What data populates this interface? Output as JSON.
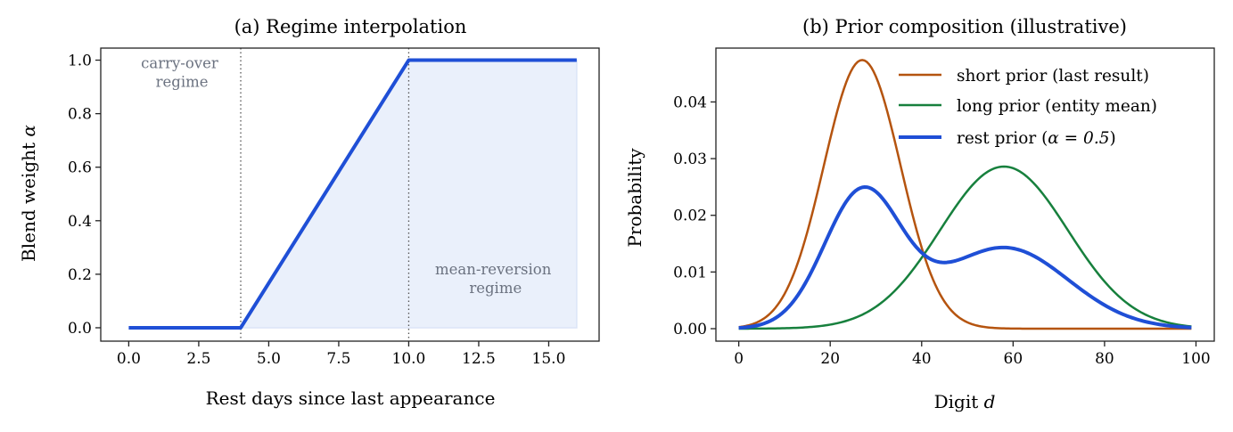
{
  "chart_data": [
    {
      "type": "line",
      "title": "(a) Regime interpolation",
      "xlabel": "Rest days since last appearance",
      "ylabel_text": "Blend weight ",
      "ylabel_symbol": "α",
      "xlim": [
        -1.0,
        16.8
      ],
      "ylim": [
        -0.05,
        1.045
      ],
      "xticks": [
        0,
        2.5,
        5,
        7.5,
        10,
        12.5,
        15
      ],
      "xtick_labels": [
        "0.0",
        "2.5",
        "5.0",
        "7.5",
        "10.0",
        "12.5",
        "15.0"
      ],
      "yticks": [
        0,
        0.2,
        0.4,
        0.6,
        0.8,
        1.0
      ],
      "ytick_labels": [
        "0.0",
        "0.2",
        "0.4",
        "0.6",
        "0.8",
        "1.0"
      ],
      "series": [
        {
          "x": [
            0,
            4,
            10,
            16
          ],
          "y": [
            0,
            0,
            1,
            1
          ],
          "color": "#1f4fd6"
        }
      ],
      "fill_under": {
        "x_from": 4,
        "x_to": 16,
        "color": "#eaf0fb"
      },
      "vlines": [
        4,
        10
      ],
      "annotations": [
        {
          "lines": [
            "carry-over",
            "regime"
          ],
          "x": 1.9,
          "y": 0.97
        },
        {
          "lines": [
            "mean-reversion",
            "regime"
          ],
          "x": 13.1,
          "y": 0.2
        }
      ],
      "grid": false
    },
    {
      "type": "line",
      "title": "(b) Prior composition (illustrative)",
      "xlabel_text": "Digit ",
      "xlabel_symbol": "d",
      "ylabel": "Probability",
      "xlim": [
        -5,
        104
      ],
      "ylim": [
        -0.0022,
        0.0495
      ],
      "xticks": [
        0,
        20,
        40,
        60,
        80,
        100
      ],
      "xtick_labels": [
        "0",
        "20",
        "40",
        "60",
        "80",
        "100"
      ],
      "yticks": [
        0,
        0.01,
        0.02,
        0.03,
        0.04
      ],
      "ytick_labels": [
        "0.00",
        "0.01",
        "0.02",
        "0.03",
        "0.04"
      ],
      "series": [
        {
          "name": "short prior (last result)",
          "color": "#b5540f",
          "curve": "gaussian",
          "mu": 27,
          "sigma": 8.4,
          "scale": 0.0474
        },
        {
          "name": "long prior (entity mean)",
          "color": "#17803d",
          "curve": "gaussian",
          "mu": 58,
          "sigma": 14.0,
          "scale": 0.0286
        },
        {
          "name_text": "rest prior (",
          "name_symbol": "α = 0.5",
          "name_close": ")",
          "color": "#1f4fd6",
          "curve": "blend",
          "alpha": 0.5
        }
      ],
      "legend_position": "upper-right",
      "grid": false
    }
  ]
}
